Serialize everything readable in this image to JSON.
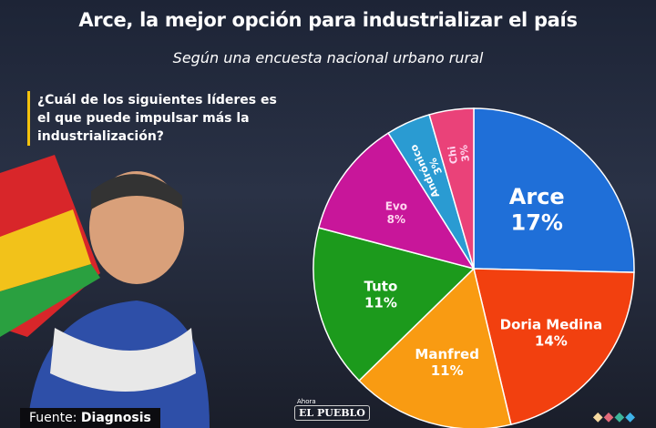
{
  "header": {
    "title": "Arce, la mejor opción para industrializar el país",
    "subtitle": "Según una encuesta nacional urbano rural"
  },
  "question": "¿Cuál de los siguientes líderes es el que puede impulsar más la industrialización?",
  "footer": {
    "source_label": "Fuente:",
    "source_name": "Diagnosis",
    "logo_small": "Ahora",
    "logo": "EL PUEBLO"
  },
  "chart_data": {
    "type": "pie",
    "title": "",
    "categories": [
      "Arce",
      "Doria Medina",
      "Manfred",
      "Tuto",
      "Evo",
      "Andrónico",
      "Chi"
    ],
    "values": [
      17,
      14,
      11,
      11,
      8,
      3,
      3
    ],
    "labels": [
      "17%",
      "14%",
      "11%",
      "11%",
      "8%",
      "3%",
      "3%"
    ],
    "colors": [
      "#1f6fd8",
      "#f2400f",
      "#f99b12",
      "#1c9a1c",
      "#c8169a",
      "#2a9bd2",
      "#ea4279"
    ],
    "start": "12 o'clock, clockwise"
  }
}
